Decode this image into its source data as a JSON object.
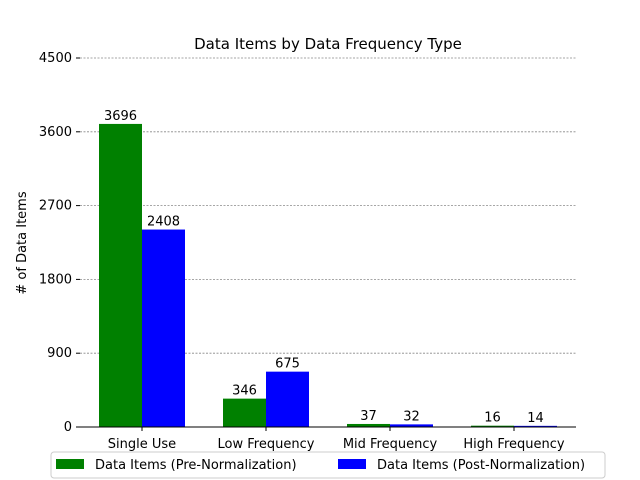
{
  "chart_data": {
    "type": "bar",
    "title": "Data Items by Data Frequency Type",
    "xlabel": "",
    "ylabel": "# of Data Items",
    "categories": [
      "Single Use",
      "Low Frequency",
      "Mid Frequency",
      "High Frequency"
    ],
    "series": [
      {
        "name": "Data Items (Pre-Normalization)",
        "color": "#008000",
        "values": [
          3696,
          346,
          37,
          16
        ]
      },
      {
        "name": "Data Items (Post-Normalization)",
        "color": "#0000ff",
        "values": [
          2408,
          675,
          32,
          14
        ]
      }
    ],
    "ylim": [
      0,
      4500
    ],
    "yticks": [
      "0",
      "900",
      "1800",
      "2700",
      "3600",
      "4500"
    ],
    "grid": true,
    "grid_style": "dashed horizontal",
    "legend_position": "bottom"
  }
}
